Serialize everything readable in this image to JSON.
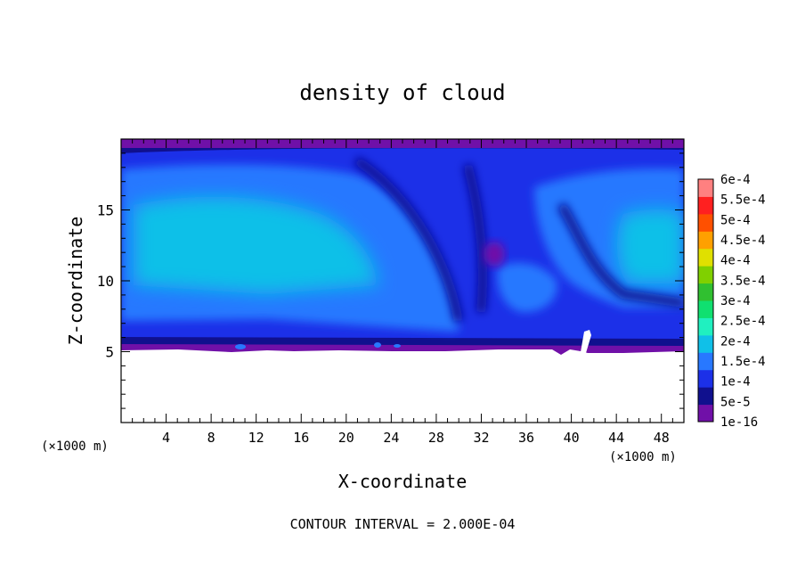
{
  "chart_data": {
    "type": "heatmap",
    "title": "density of cloud",
    "xlabel": "X-coordinate",
    "ylabel": "Z-coordinate",
    "x_unit": "(×1000 m)",
    "xlim": [
      0,
      50
    ],
    "ylim": [
      0,
      20
    ],
    "x_ticks": [
      4,
      8,
      12,
      16,
      20,
      24,
      28,
      32,
      36,
      40,
      44,
      48
    ],
    "y_ticks": [
      5,
      10,
      15
    ],
    "footer": "CONTOUR INTERVAL = 2.000E-04",
    "colorbar": {
      "levels": [
        "1e-16",
        "5e-5",
        "1e-4",
        "1.5e-4",
        "2e-4",
        "2.5e-4",
        "3e-4",
        "3.5e-4",
        "4e-4",
        "4.5e-4",
        "5e-4",
        "5.5e-4",
        "6e-4"
      ],
      "colors": [
        "#7010a8",
        "#10108e",
        "#1c30e8",
        "#2878ff",
        "#10c0e8",
        "#20f0c0",
        "#10e070",
        "#30c030",
        "#80d000",
        "#e0e000",
        "#ffa000",
        "#ff5000",
        "#ff2020",
        "#ff8080"
      ]
    },
    "cloud_region": {
      "base_z_range": [
        4.7,
        5.3
      ],
      "top_z": 19.8,
      "dominant_levels": [
        "5e-5",
        "1e-4",
        "1.5e-4",
        "2e-4"
      ],
      "note_max": "2e-4"
    }
  }
}
